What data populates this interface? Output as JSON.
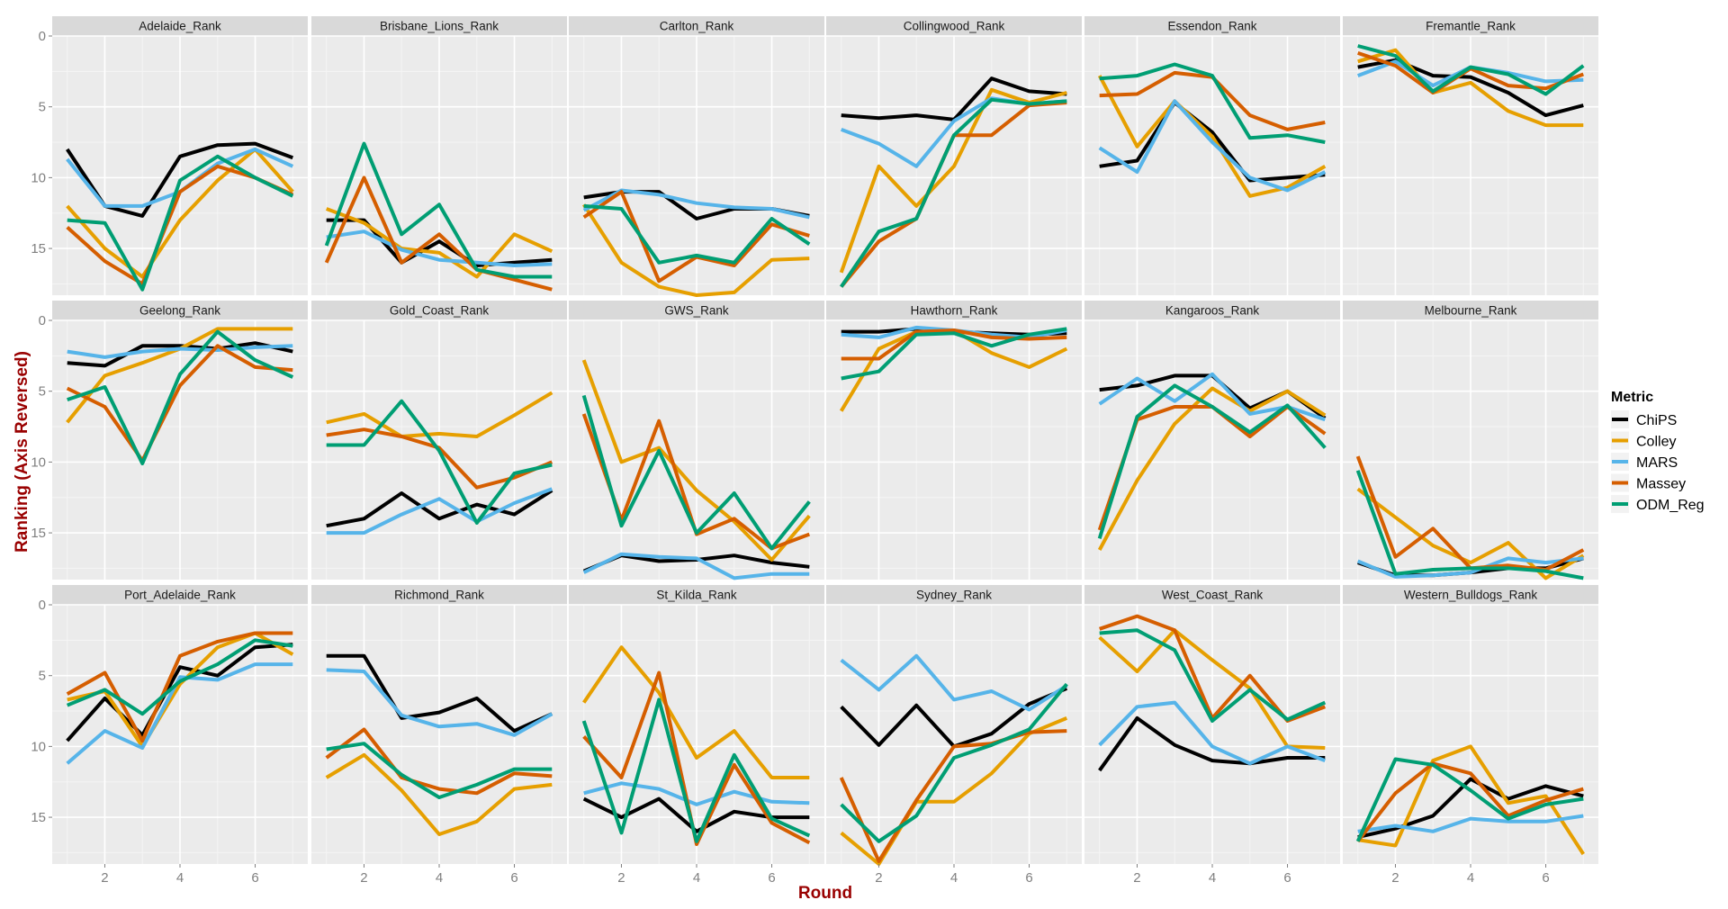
{
  "chart_data": {
    "type": "line",
    "facet_layout": "3x6 grid",
    "xlabel": "Round",
    "ylabel": "Ranking (Axis Reversed)",
    "x": [
      1,
      2,
      3,
      4,
      5,
      6,
      7
    ],
    "x_ticks": [
      2,
      4,
      6
    ],
    "y_ticks": [
      0,
      5,
      10,
      15
    ],
    "ylim": [
      0,
      18.3
    ],
    "y_reversed": true,
    "legend": {
      "title": "Metric",
      "position": "right",
      "entries": [
        {
          "name": "ChiPS",
          "color": "#000000"
        },
        {
          "name": "Colley",
          "color": "#E69F00"
        },
        {
          "name": "MARS",
          "color": "#56B4E9"
        },
        {
          "name": "Massey",
          "color": "#D55E00"
        },
        {
          "name": "ODM_Reg",
          "color": "#009E73"
        }
      ]
    },
    "panel_background": "#EBEBEB",
    "strip_background": "#D9D9D9",
    "facets": [
      {
        "title": "Adelaide_Rank",
        "series": {
          "ChiPS": [
            8,
            12,
            12.7,
            8.5,
            7.7,
            7.6,
            8.6
          ],
          "Colley": [
            12,
            15,
            17,
            13,
            10.2,
            8,
            11
          ],
          "MARS": [
            8.7,
            12,
            12,
            11,
            9,
            8,
            9.2
          ],
          "Massey": [
            13.5,
            15.9,
            17.5,
            11,
            9.2,
            10,
            11.2
          ],
          "ODM_Reg": [
            13,
            13.2,
            17.9,
            10.2,
            8.5,
            10,
            11.3
          ]
        }
      },
      {
        "title": "Brisbane_Lions_Rank",
        "series": {
          "ChiPS": [
            13,
            13,
            16,
            14.5,
            16.2,
            16,
            15.8
          ],
          "Colley": [
            12.2,
            13.2,
            15,
            15.3,
            17,
            14,
            15.2
          ],
          "MARS": [
            14.2,
            13.8,
            15.1,
            15.8,
            16,
            16.2,
            16.1
          ],
          "Massey": [
            16,
            10,
            16,
            14,
            16.5,
            17.2,
            17.9
          ],
          "ODM_Reg": [
            14.8,
            7.6,
            14,
            11.9,
            16.5,
            17,
            17
          ]
        }
      },
      {
        "title": "Carlton_Rank",
        "series": {
          "ChiPS": [
            11.4,
            11,
            11,
            12.9,
            12.2,
            12.2,
            12.7
          ],
          "Colley": [
            11.9,
            16,
            17.7,
            18.3,
            18.1,
            15.8,
            15.7
          ],
          "MARS": [
            12.3,
            10.9,
            11.2,
            11.8,
            12.1,
            12.2,
            12.8
          ],
          "Massey": [
            12.8,
            11,
            17.3,
            15.6,
            16.2,
            13.3,
            14.1
          ],
          "ODM_Reg": [
            12,
            12.2,
            16,
            15.5,
            16,
            12.9,
            14.7
          ]
        }
      },
      {
        "title": "Collingwood_Rank",
        "series": {
          "ChiPS": [
            5.6,
            5.8,
            5.6,
            5.9,
            3,
            3.9,
            4.1
          ],
          "Colley": [
            16.7,
            9.2,
            12,
            9.2,
            3.8,
            4.7,
            4
          ],
          "MARS": [
            6.6,
            7.6,
            9.2,
            6,
            4.4,
            4.8,
            4.6
          ],
          "Massey": [
            17.7,
            14.5,
            12.9,
            7,
            7,
            4.9,
            4.7
          ],
          "ODM_Reg": [
            17.7,
            13.8,
            12.9,
            7,
            4.5,
            4.8,
            4.6
          ]
        }
      },
      {
        "title": "Essendon_Rank",
        "series": {
          "ChiPS": [
            9.2,
            8.8,
            4.7,
            6.8,
            10.2,
            10,
            9.8
          ],
          "Colley": [
            2.8,
            7.8,
            4.6,
            7.1,
            11.3,
            10.7,
            9.2
          ],
          "MARS": [
            7.9,
            9.6,
            4.6,
            7.5,
            10,
            10.9,
            9.6
          ],
          "Massey": [
            4.2,
            4.1,
            2.6,
            2.9,
            5.6,
            6.6,
            6.1
          ],
          "ODM_Reg": [
            3,
            2.8,
            2,
            2.8,
            7.2,
            7,
            7.5
          ]
        }
      },
      {
        "title": "Fremantle_Rank",
        "series": {
          "ChiPS": [
            2.2,
            1.7,
            2.8,
            2.9,
            4,
            5.6,
            4.9
          ],
          "Colley": [
            1.8,
            1,
            4,
            3.3,
            5.3,
            6.3,
            6.3
          ],
          "MARS": [
            2.8,
            1.8,
            3.5,
            2.2,
            2.6,
            3.2,
            3.1
          ],
          "Massey": [
            1.2,
            2.1,
            4,
            2.3,
            3.5,
            3.7,
            2.7
          ],
          "ODM_Reg": [
            0.7,
            1.4,
            3.9,
            2.2,
            2.7,
            4.1,
            2.1
          ]
        }
      },
      {
        "title": "Geelong_Rank",
        "series": {
          "ChiPS": [
            3,
            3.2,
            1.8,
            1.8,
            2,
            1.6,
            2.2
          ],
          "Colley": [
            7.2,
            3.9,
            3,
            2,
            0.6,
            0.6,
            0.6
          ],
          "MARS": [
            2.2,
            2.6,
            2.2,
            2,
            2.1,
            1.9,
            1.8
          ],
          "Massey": [
            4.8,
            6.1,
            9.9,
            4.6,
            1.8,
            3.3,
            3.5
          ],
          "ODM_Reg": [
            5.6,
            4.7,
            10.1,
            3.8,
            0.8,
            2.8,
            4
          ]
        }
      },
      {
        "title": "Gold_Coast_Rank",
        "series": {
          "ChiPS": [
            14.5,
            14,
            12.2,
            14,
            13,
            13.7,
            12
          ],
          "Colley": [
            7.2,
            6.6,
            8.2,
            8,
            8.2,
            6.7,
            5.1
          ],
          "MARS": [
            15,
            15,
            13.7,
            12.6,
            14.2,
            12.9,
            11.9
          ],
          "Massey": [
            8.1,
            7.7,
            8.2,
            9,
            11.8,
            11.1,
            10
          ],
          "ODM_Reg": [
            8.8,
            8.8,
            5.7,
            9.2,
            14.3,
            10.8,
            10.2
          ]
        }
      },
      {
        "title": "GWS_Rank",
        "series": {
          "ChiPS": [
            17.7,
            16.6,
            17,
            16.9,
            16.6,
            17.1,
            17.4
          ],
          "Colley": [
            2.8,
            10,
            9,
            12,
            14.2,
            16.9,
            13.8
          ],
          "MARS": [
            17.8,
            16.5,
            16.7,
            16.8,
            18.2,
            17.9,
            17.9
          ],
          "Massey": [
            6.6,
            14.1,
            7.1,
            15.1,
            14,
            16.1,
            15.1
          ],
          "ODM_Reg": [
            5.3,
            14.5,
            9.2,
            15,
            12.2,
            16.1,
            12.8
          ]
        }
      },
      {
        "title": "Hawthorn_Rank",
        "series": {
          "ChiPS": [
            0.8,
            0.8,
            0.6,
            0.8,
            0.9,
            1,
            0.9
          ],
          "Colley": [
            6.4,
            2,
            0.8,
            0.7,
            2.3,
            3.3,
            2
          ],
          "MARS": [
            1,
            1.2,
            0.5,
            0.7,
            1,
            1.2,
            0.7
          ],
          "Massey": [
            2.7,
            2.7,
            0.8,
            0.7,
            1.2,
            1.3,
            1.2
          ],
          "ODM_Reg": [
            4.1,
            3.6,
            1,
            0.9,
            1.8,
            1,
            0.6
          ]
        }
      },
      {
        "title": "Kangaroos_Rank",
        "series": {
          "ChiPS": [
            4.9,
            4.6,
            3.9,
            3.9,
            6.2,
            5,
            6.9
          ],
          "Colley": [
            16.2,
            11.3,
            7.3,
            4.8,
            6.4,
            5,
            6.7
          ],
          "MARS": [
            5.9,
            4.1,
            5.7,
            3.8,
            6.6,
            6.1,
            7
          ],
          "Massey": [
            14.8,
            7,
            6.1,
            6.1,
            8.2,
            6.1,
            8
          ],
          "ODM_Reg": [
            15.4,
            6.8,
            4.6,
            6.1,
            7.9,
            6,
            9
          ]
        }
      },
      {
        "title": "Melbourne_Rank",
        "series": {
          "ChiPS": [
            17.1,
            18,
            18,
            17.8,
            17.5,
            17.5,
            16.8
          ],
          "Colley": [
            11.9,
            13.9,
            15.9,
            17.1,
            15.7,
            18.2,
            16.6
          ],
          "MARS": [
            17,
            18.1,
            18,
            17.8,
            16.8,
            17.1,
            16.8
          ],
          "Massey": [
            9.6,
            16.7,
            14.7,
            17.5,
            17.3,
            17.6,
            16.2
          ],
          "ODM_Reg": [
            10.6,
            17.9,
            17.6,
            17.5,
            17.5,
            17.7,
            18.2
          ]
        }
      },
      {
        "title": "Port_Adelaide_Rank",
        "series": {
          "ChiPS": [
            9.6,
            6.6,
            9.2,
            4.4,
            5,
            3,
            2.8
          ],
          "Colley": [
            6.7,
            6.1,
            10,
            5.6,
            3,
            2,
            3.5
          ],
          "MARS": [
            11.2,
            8.9,
            10.1,
            5.1,
            5.3,
            4.2,
            4.2
          ],
          "Massey": [
            6.3,
            4.8,
            9.6,
            3.6,
            2.6,
            2,
            2
          ],
          "ODM_Reg": [
            7.1,
            6,
            7.7,
            5.4,
            4.2,
            2.5,
            2.9
          ]
        }
      },
      {
        "title": "Richmond_Rank",
        "series": {
          "ChiPS": [
            3.6,
            3.6,
            8,
            7.6,
            6.6,
            8.9,
            7.7
          ],
          "Colley": [
            12.2,
            10.6,
            13.1,
            16.2,
            15.3,
            13,
            12.7
          ],
          "MARS": [
            4.6,
            4.7,
            7.8,
            8.6,
            8.4,
            9.2,
            7.7
          ],
          "Massey": [
            10.8,
            8.8,
            12.2,
            13,
            13.3,
            11.9,
            12.1
          ],
          "ODM_Reg": [
            10.2,
            9.8,
            12,
            13.6,
            12.7,
            11.6,
            11.6
          ]
        }
      },
      {
        "title": "St_Kilda_Rank",
        "series": {
          "ChiPS": [
            13.7,
            15,
            13.7,
            16,
            14.6,
            15,
            15
          ],
          "Colley": [
            6.9,
            3,
            6.2,
            10.8,
            8.9,
            12.2,
            12.2
          ],
          "MARS": [
            13.3,
            12.6,
            13,
            14.1,
            13.2,
            13.9,
            14
          ],
          "Massey": [
            9.3,
            12.2,
            4.8,
            16.9,
            11.3,
            15.4,
            16.8
          ],
          "ODM_Reg": [
            8.2,
            16.1,
            6.7,
            16.7,
            10.6,
            15.1,
            16.3
          ]
        }
      },
      {
        "title": "Sydney_Rank",
        "series": {
          "ChiPS": [
            7.2,
            9.9,
            7.1,
            10,
            9.1,
            7,
            5.9
          ],
          "Colley": [
            16.1,
            18.3,
            13.9,
            13.9,
            11.9,
            9.1,
            8
          ],
          "MARS": [
            3.9,
            6,
            3.6,
            6.7,
            6.1,
            7.4,
            5.7
          ],
          "Massey": [
            12.2,
            18.1,
            13.8,
            10,
            9.8,
            9,
            8.9
          ],
          "ODM_Reg": [
            14.1,
            16.7,
            14.9,
            10.8,
            9.9,
            8.8,
            5.6
          ]
        }
      },
      {
        "title": "West_Coast_Rank",
        "series": {
          "ChiPS": [
            11.7,
            8,
            9.9,
            11,
            11.2,
            10.8,
            10.8
          ],
          "Colley": [
            2.3,
            4.7,
            1.8,
            3.9,
            5.9,
            10,
            10.1
          ],
          "MARS": [
            9.9,
            7.2,
            6.9,
            10,
            11.2,
            10,
            11
          ],
          "Massey": [
            1.7,
            0.8,
            1.8,
            8,
            5,
            8.2,
            7.2
          ],
          "ODM_Reg": [
            2,
            1.8,
            3.2,
            8.2,
            6,
            8.1,
            6.9
          ]
        }
      },
      {
        "title": "Western_Bulldogs_Rank",
        "series": {
          "ChiPS": [
            16.4,
            15.8,
            14.9,
            12.3,
            13.7,
            12.8,
            13.5
          ],
          "Colley": [
            16.6,
            17,
            11,
            10,
            14,
            13.5,
            17.6
          ],
          "MARS": [
            16,
            15.6,
            16,
            15.1,
            15.3,
            15.3,
            14.9
          ],
          "Massey": [
            16.7,
            13.3,
            11.2,
            11.9,
            14.9,
            13.8,
            13
          ],
          "ODM_Reg": [
            16.7,
            10.9,
            11.3,
            13.1,
            15.1,
            14.1,
            13.7
          ]
        }
      }
    ]
  }
}
